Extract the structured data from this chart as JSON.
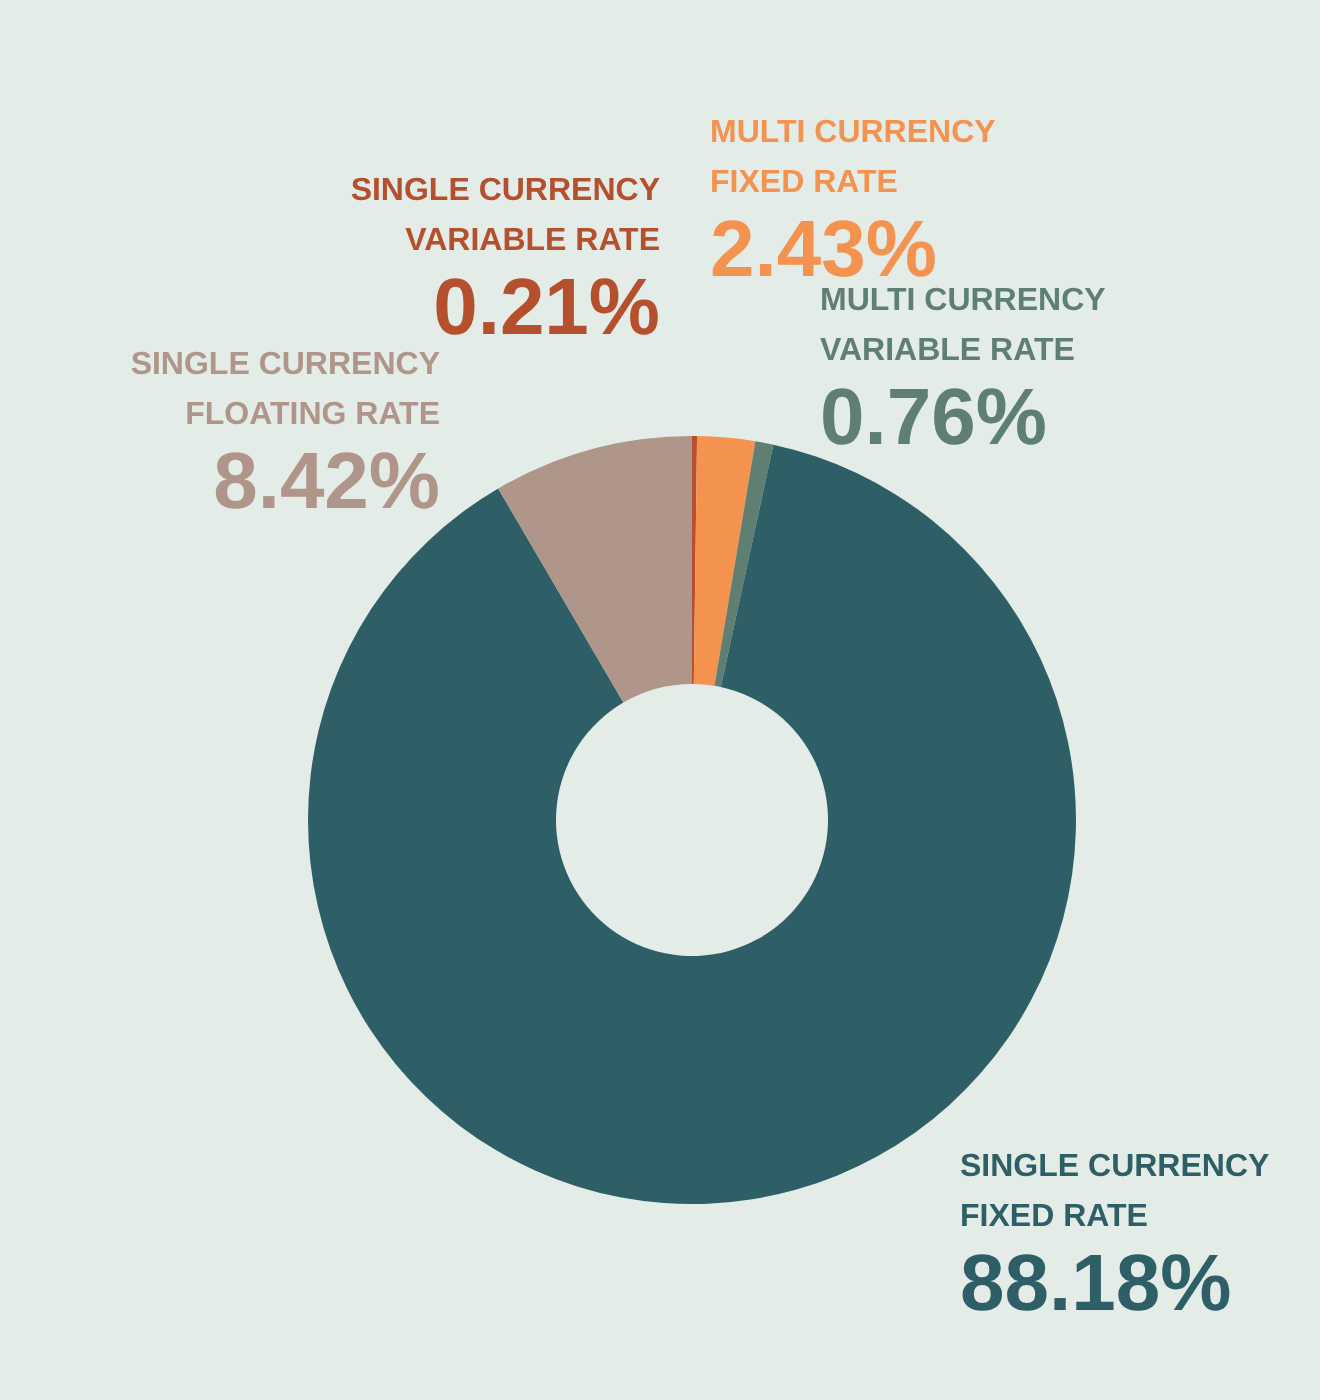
{
  "chart_data": {
    "type": "donut",
    "categories": [
      "SINGLE CURRENCY\nVARIABLE RATE",
      "MULTI CURRENCY\nFIXED RATE",
      "MULTI CURRENCY\nVARIABLE RATE",
      "SINGLE CURRENCY\nFIXED RATE",
      "SINGLE CURRENCY\nFLOATING RATE"
    ],
    "values": [
      0.21,
      2.43,
      0.76,
      88.18,
      8.42
    ],
    "colors": [
      "#b5502f",
      "#f4934f",
      "#5e7f72",
      "#2f5f66",
      "#b0968a"
    ],
    "value_labels": [
      "0.21%",
      "2.43%",
      "0.76%",
      "88.18%",
      "8.42%"
    ]
  }
}
